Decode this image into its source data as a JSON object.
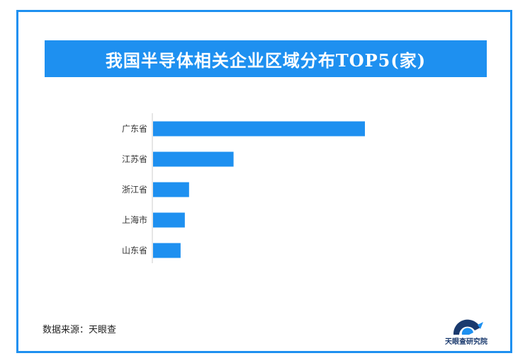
{
  "chart_data": {
    "type": "bar",
    "orientation": "horizontal",
    "title": "我国半导体相关企业区域分布TOP5(家)",
    "categories": [
      "广东省",
      "江苏省",
      "浙江省",
      "上海市",
      "山东省"
    ],
    "values": [
      100,
      38,
      17,
      15,
      13
    ],
    "xlim": [
      0,
      100
    ],
    "grid": false,
    "legend": "none",
    "bar_color": "#1e90f0"
  },
  "source": {
    "text": "数据来源：天眼查"
  },
  "brand": {
    "name": "天眼查研究院",
    "color": "#1a3a6e",
    "accent": "#1e90f0"
  }
}
